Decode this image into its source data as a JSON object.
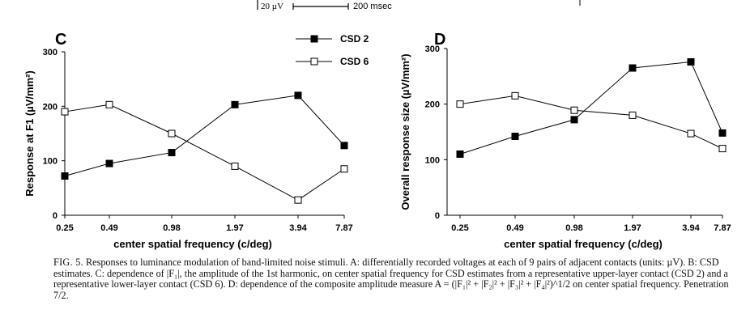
{
  "scale_bar": {
    "voltage": "20 µV",
    "time": "200 msec"
  },
  "chart_data": [
    {
      "type": "line",
      "panel_label": "C",
      "title": "",
      "xlabel": "center spatial frequency (c/deg)",
      "ylabel": "Response at F1 (µV/mm²)",
      "categories": [
        "0.25",
        "0.49",
        "0.98",
        "1.97",
        "3.94",
        "7.87"
      ],
      "ylim": [
        0,
        300
      ],
      "yticks": [
        0,
        100,
        200,
        300
      ],
      "grid": false,
      "legend": "top-center",
      "series": [
        {
          "name": "CSD 2",
          "marker": "filled-square",
          "values": [
            72,
            95,
            115,
            203,
            220,
            128
          ]
        },
        {
          "name": "CSD 6",
          "marker": "open-square",
          "values": [
            190,
            203,
            150,
            90,
            28,
            85
          ]
        }
      ]
    },
    {
      "type": "line",
      "panel_label": "D",
      "title": "",
      "xlabel": "center spatial frequency (c/deg)",
      "ylabel": "Overall response size (µV/mm²)",
      "categories": [
        "0.25",
        "0.49",
        "0.98",
        "1.97",
        "3.94",
        "7.87"
      ],
      "ylim": [
        0,
        300
      ],
      "yticks": [
        0,
        100,
        200,
        300
      ],
      "grid": false,
      "series": [
        {
          "name": "CSD 2",
          "marker": "filled-square",
          "values": [
            110,
            142,
            172,
            265,
            276,
            148
          ]
        },
        {
          "name": "CSD 6",
          "marker": "open-square",
          "values": [
            200,
            215,
            189,
            180,
            147,
            120
          ]
        }
      ]
    }
  ],
  "caption": {
    "fig_label": "FIG. 5.",
    "text": "Responses to luminance modulation of band-limited noise stimuli. A: differentially recorded voltages at each of 9 pairs of adjacent contacts (units: µV). B: CSD estimates. C: dependence of |F₁|, the amplitude of the 1st harmonic, on center spatial frequency for CSD estimates from a representative upper-layer contact (CSD 2) and a representative lower-layer contact (CSD 6). D: dependence of the composite amplitude measure A = (|F₁|² + |F₂|² + |F₃|² + |F₄|²)^1/2 on center spatial frequency. Penetration 7/2."
  }
}
